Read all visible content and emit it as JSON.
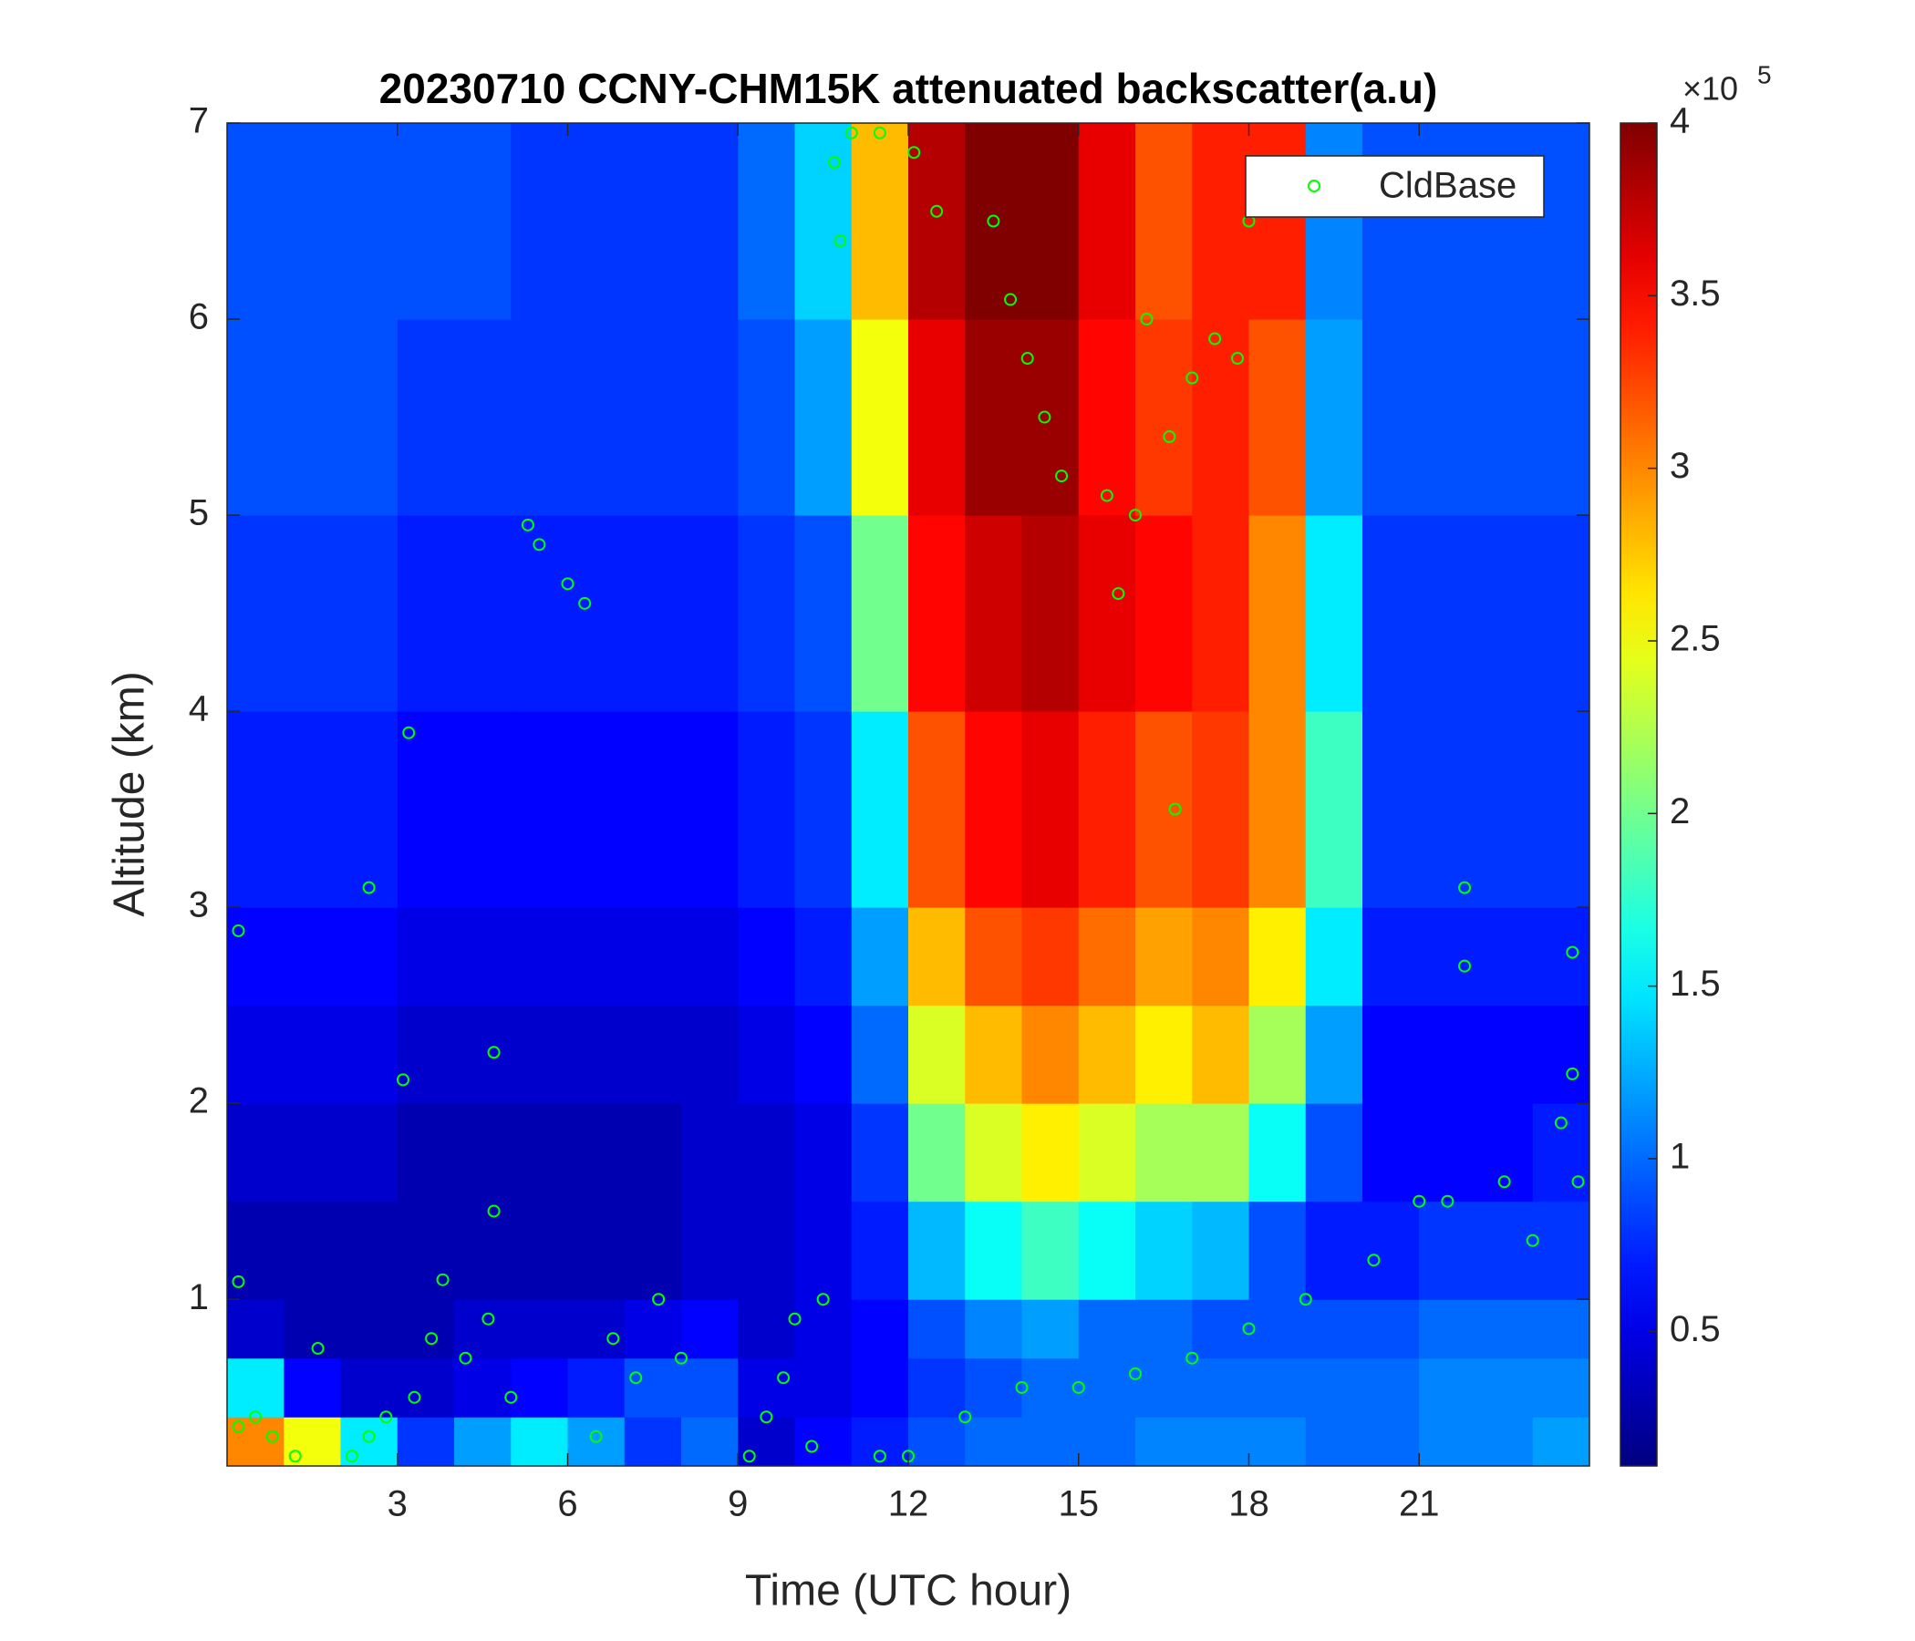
{
  "chart_data": {
    "type": "heatmap",
    "title": "20230710 CCNY-CHM15K attenuated backscatter(a.u)",
    "x_label": "Time (UTC hour)",
    "y_label": "Altitude (km)",
    "xlim": [
      0,
      24
    ],
    "xticks": [
      3,
      6,
      9,
      12,
      15,
      18,
      21
    ],
    "ylim": [
      0.15,
      7
    ],
    "yticks": [
      1,
      2,
      3,
      4,
      5,
      6,
      7
    ],
    "colormap": "jet",
    "clim": [
      0.11,
      4
    ],
    "colorbar_ticks": [
      0.5,
      1,
      1.5,
      2,
      2.5,
      3,
      3.5,
      4
    ],
    "colorbar_multiplier": "×10",
    "colorbar_exponent": "5",
    "x_edges": [
      0,
      1,
      2,
      3,
      4,
      5,
      6,
      7,
      8,
      9,
      10,
      11,
      12,
      13,
      14,
      15,
      16,
      17,
      18,
      19,
      20,
      21,
      22,
      23,
      24
    ],
    "y_edges": [
      0.15,
      0.4,
      0.7,
      1,
      1.5,
      2,
      2.5,
      3,
      4,
      5,
      6,
      7
    ],
    "z": [
      [
        3.0,
        2.5,
        1.5,
        0.8,
        1.2,
        1.5,
        1.2,
        0.8,
        1.0,
        0.4,
        0.6,
        0.7,
        0.9,
        1.0,
        1.0,
        1.0,
        1.1,
        1.1,
        1.1,
        1.0,
        1.0,
        1.1,
        1.1,
        1.2
      ],
      [
        1.5,
        0.6,
        0.4,
        0.4,
        0.5,
        0.6,
        0.7,
        0.9,
        0.9,
        0.5,
        0.5,
        0.6,
        0.8,
        0.9,
        1.0,
        1.0,
        1.0,
        1.0,
        1.0,
        1.0,
        1.0,
        1.1,
        1.1,
        1.1
      ],
      [
        0.4,
        0.3,
        0.3,
        0.3,
        0.4,
        0.4,
        0.4,
        0.5,
        0.6,
        0.4,
        0.5,
        0.6,
        0.9,
        1.1,
        1.2,
        1.0,
        1.0,
        0.9,
        0.9,
        0.9,
        0.9,
        1.0,
        1.0,
        1.0
      ],
      [
        0.3,
        0.3,
        0.3,
        0.3,
        0.3,
        0.3,
        0.3,
        0.3,
        0.4,
        0.4,
        0.5,
        0.7,
        1.3,
        1.6,
        1.8,
        1.6,
        1.4,
        1.3,
        0.9,
        0.7,
        0.7,
        0.8,
        0.8,
        0.8
      ],
      [
        0.4,
        0.4,
        0.4,
        0.3,
        0.3,
        0.3,
        0.3,
        0.3,
        0.4,
        0.4,
        0.5,
        0.8,
        2.0,
        2.4,
        2.6,
        2.4,
        2.2,
        2.2,
        1.6,
        0.9,
        0.6,
        0.6,
        0.6,
        0.7
      ],
      [
        0.5,
        0.5,
        0.5,
        0.4,
        0.4,
        0.4,
        0.4,
        0.4,
        0.4,
        0.5,
        0.6,
        1.0,
        2.4,
        2.8,
        3.0,
        2.8,
        2.6,
        2.8,
        2.2,
        1.2,
        0.6,
        0.6,
        0.6,
        0.6
      ],
      [
        0.6,
        0.6,
        0.6,
        0.5,
        0.5,
        0.5,
        0.5,
        0.5,
        0.5,
        0.6,
        0.7,
        1.2,
        2.8,
        3.2,
        3.3,
        3.1,
        2.9,
        3.0,
        2.6,
        1.5,
        0.7,
        0.7,
        0.7,
        0.7
      ],
      [
        0.7,
        0.7,
        0.7,
        0.6,
        0.6,
        0.6,
        0.6,
        0.6,
        0.6,
        0.7,
        0.8,
        1.5,
        3.2,
        3.5,
        3.6,
        3.4,
        3.2,
        3.3,
        3.0,
        1.8,
        0.8,
        0.8,
        0.8,
        0.8
      ],
      [
        0.8,
        0.8,
        0.8,
        0.7,
        0.7,
        0.7,
        0.7,
        0.7,
        0.7,
        0.8,
        0.9,
        2.0,
        3.5,
        3.7,
        3.8,
        3.6,
        3.5,
        3.4,
        3.0,
        1.5,
        0.8,
        0.8,
        0.8,
        0.8
      ],
      [
        0.9,
        0.9,
        0.9,
        0.8,
        0.8,
        0.8,
        0.8,
        0.8,
        0.8,
        0.9,
        1.2,
        2.5,
        3.6,
        3.9,
        3.9,
        3.5,
        3.3,
        3.4,
        3.2,
        1.2,
        0.9,
        0.9,
        0.9,
        0.9
      ],
      [
        0.9,
        0.9,
        0.9,
        0.9,
        0.9,
        0.8,
        0.8,
        0.8,
        0.8,
        1.0,
        1.4,
        2.8,
        3.8,
        4.0,
        4.0,
        3.6,
        3.2,
        3.4,
        3.4,
        1.1,
        0.9,
        0.9,
        0.9,
        0.9
      ]
    ],
    "legend": "upper right",
    "series": [
      {
        "name": "CldBase",
        "type": "scatter",
        "color": "#00ff00",
        "x": [
          0.2,
          0.5,
          0.8,
          1.2,
          0.2,
          0.2,
          1.6,
          2.2,
          2.5,
          2.5,
          2.8,
          3.1,
          3.2,
          3.3,
          3.6,
          3.8,
          4.2,
          4.6,
          4.7,
          4.7,
          5.0,
          5.3,
          5.5,
          6.0,
          6.3,
          6.5,
          6.8,
          7.2,
          7.6,
          8.0,
          9.2,
          9.5,
          9.8,
          10.0,
          10.3,
          10.5,
          10.8,
          10.7,
          11.0,
          11.5,
          11.5,
          12.1,
          12.5,
          13.0,
          13.5,
          13.8,
          14.1,
          14.4,
          14.7,
          15.0,
          15.5,
          15.7,
          16.0,
          16.2,
          16.6,
          16.7,
          17.0,
          17.4,
          17.8,
          18.0,
          17.0,
          18.0,
          19.0,
          20.2,
          21.0,
          21.5,
          21.8,
          21.8,
          22.5,
          23.0,
          23.5,
          23.7,
          23.7,
          23.8,
          14.0,
          12.0,
          16.0
        ],
        "y": [
          0.35,
          0.4,
          0.3,
          0.2,
          2.88,
          1.09,
          0.75,
          0.2,
          0.3,
          3.1,
          0.4,
          2.12,
          3.89,
          0.5,
          0.8,
          1.1,
          0.7,
          0.9,
          1.45,
          2.26,
          0.5,
          4.95,
          4.85,
          4.65,
          4.55,
          0.3,
          0.8,
          0.6,
          1.0,
          0.7,
          0.2,
          0.4,
          0.6,
          0.9,
          0.25,
          1.0,
          6.4,
          6.8,
          6.95,
          6.95,
          0.2,
          6.85,
          6.55,
          0.4,
          6.5,
          6.1,
          5.8,
          5.5,
          5.2,
          0.55,
          5.1,
          4.6,
          5.0,
          6.0,
          5.4,
          3.5,
          5.7,
          5.9,
          5.8,
          6.5,
          0.7,
          0.85,
          1.0,
          1.2,
          1.5,
          1.5,
          3.1,
          2.7,
          1.6,
          1.3,
          1.9,
          2.15,
          2.77,
          1.6,
          0.55,
          0.2,
          0.62
        ]
      }
    ]
  }
}
